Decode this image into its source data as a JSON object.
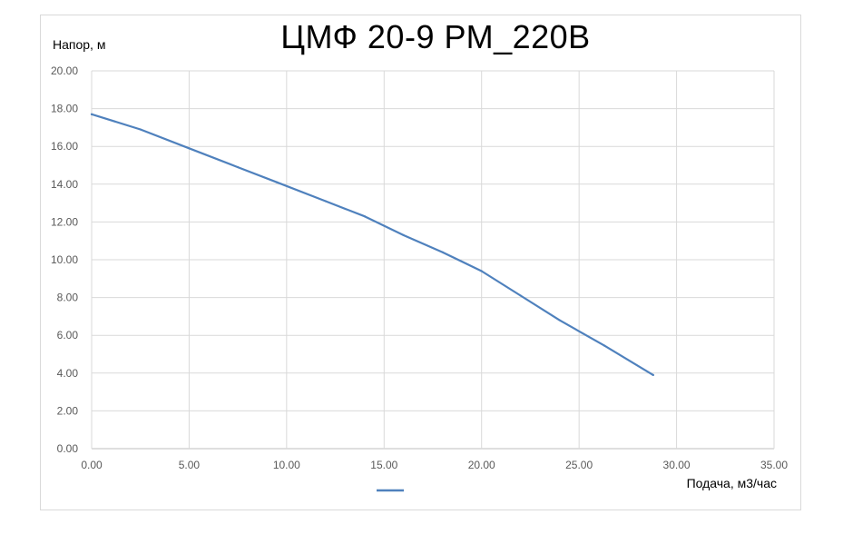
{
  "chart_data": {
    "type": "line",
    "title": "ЦМФ 20-9 РМ_220В",
    "ylabel": "Напор, м",
    "xlabel": "Подача, м3/час",
    "xlim": [
      0,
      35
    ],
    "ylim": [
      0,
      20
    ],
    "x_ticks": [
      "0.00",
      "5.00",
      "10.00",
      "15.00",
      "20.00",
      "25.00",
      "30.00",
      "35.00"
    ],
    "y_ticks": [
      "0.00",
      "2.00",
      "4.00",
      "6.00",
      "8.00",
      "10.00",
      "12.00",
      "14.00",
      "16.00",
      "18.00",
      "20.00"
    ],
    "grid": true,
    "legend_position": "bottom",
    "series": [
      {
        "color": "#4f81bd",
        "x": [
          0.0,
          2.5,
          5.0,
          7.5,
          9.5,
          12.0,
          14.0,
          16.0,
          18.0,
          20.0,
          22.0,
          24.0,
          26.3,
          28.8
        ],
        "y": [
          17.7,
          16.9,
          15.9,
          14.9,
          14.1,
          13.1,
          12.3,
          11.3,
          10.4,
          9.4,
          8.1,
          6.8,
          5.45,
          3.9
        ]
      }
    ]
  }
}
